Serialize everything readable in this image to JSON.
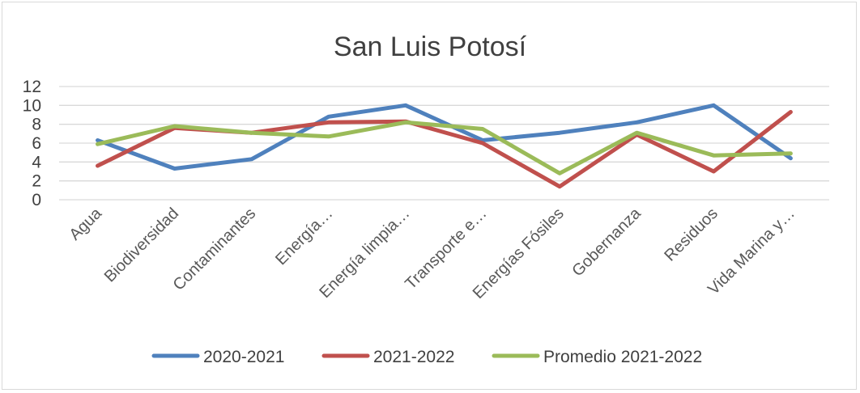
{
  "chart_data": {
    "type": "line",
    "title": "San Luis Potosí",
    "categories": [
      "Agua",
      "Biodiversidad",
      "Contaminantes",
      "Energía…",
      "Energía limpia…",
      "Transporte e…",
      "Energías Fósiles",
      "Gobernanza",
      "Residuos",
      "Vida Marina y…"
    ],
    "series": [
      {
        "name": "2020-2021",
        "color": "#4f81bd",
        "values": [
          6.3,
          3.3,
          4.3,
          8.8,
          10.0,
          6.3,
          7.1,
          8.2,
          10.0,
          4.4
        ]
      },
      {
        "name": "2021-2022",
        "color": "#c0504d",
        "values": [
          3.6,
          7.6,
          7.1,
          8.2,
          8.3,
          6.0,
          1.4,
          6.9,
          3.0,
          9.3
        ]
      },
      {
        "name": "Promedio 2021-2022",
        "color": "#9bbb59",
        "values": [
          5.9,
          7.8,
          7.1,
          6.7,
          8.2,
          7.5,
          2.8,
          7.1,
          4.7,
          4.9
        ]
      }
    ],
    "yticks": [
      "0",
      "2",
      "4",
      "6",
      "8",
      "10",
      "12"
    ],
    "ylim": [
      0,
      12
    ],
    "grid": true,
    "legend_position": "bottom"
  }
}
